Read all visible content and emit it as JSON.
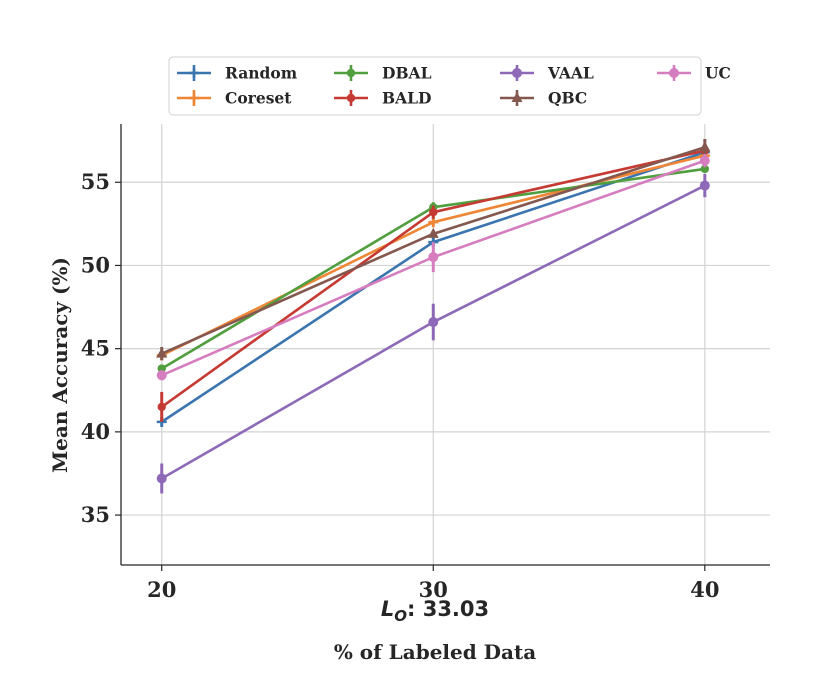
{
  "chart_data": {
    "type": "line",
    "title": "",
    "xlabel": "% of Labeled Data",
    "ylabel": "Mean Accuracy (%)",
    "annotation": {
      "symbol": "L",
      "subscript": "O",
      "text": ": 33.03"
    },
    "x": [
      20,
      30,
      40
    ],
    "xticks": [
      "20",
      "30",
      "40"
    ],
    "yticks": [
      "35",
      "40",
      "45",
      "50",
      "55"
    ],
    "ytick_values": [
      35,
      40,
      45,
      50,
      55
    ],
    "xtick_values": [
      20,
      30,
      40
    ],
    "xlim": [
      18.5,
      42.4
    ],
    "ylim": [
      32.0,
      58.5
    ],
    "grid": true,
    "legend_position": "top-center",
    "series": [
      {
        "name": "Random",
        "color": "#3b75af",
        "marker": "plus",
        "values": [
          40.6,
          51.4,
          56.8
        ],
        "errors": [
          0.3,
          0.3,
          0.3
        ]
      },
      {
        "name": "Coreset",
        "color": "#ef8636",
        "marker": "plus",
        "values": [
          44.6,
          52.6,
          56.6
        ],
        "errors": [
          0.3,
          0.3,
          0.3
        ]
      },
      {
        "name": "DBAL",
        "color": "#519e3e",
        "marker": "dot",
        "values": [
          43.8,
          53.5,
          55.8
        ],
        "errors": [
          0.2,
          0.3,
          0.2
        ]
      },
      {
        "name": "BALD",
        "color": "#c53a32",
        "marker": "dot",
        "values": [
          41.5,
          53.2,
          56.9
        ],
        "errors": [
          0.9,
          0.4,
          0.3
        ]
      },
      {
        "name": "VAAL",
        "color": "#8d69b8",
        "marker": "circle",
        "values": [
          37.2,
          46.6,
          54.8
        ],
        "errors": [
          0.9,
          1.1,
          0.7
        ]
      },
      {
        "name": "QBC",
        "color": "#84584e",
        "marker": "triangle",
        "values": [
          44.7,
          51.9,
          57.1
        ],
        "errors": [
          0.4,
          0.2,
          0.5
        ]
      },
      {
        "name": "UC",
        "color": "#d57dbe",
        "marker": "circle",
        "values": [
          43.4,
          50.5,
          56.3
        ],
        "errors": [
          0.3,
          0.9,
          0.4
        ]
      }
    ]
  }
}
